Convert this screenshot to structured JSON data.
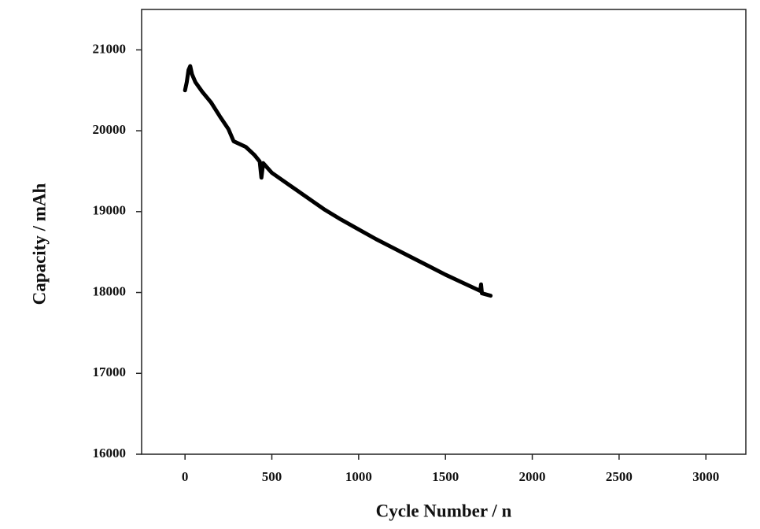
{
  "chart_data": {
    "type": "line",
    "x_label": "Cycle Number / n",
    "y_label": "Capacity / mAh",
    "x": [
      0,
      10,
      20,
      30,
      40,
      60,
      100,
      150,
      200,
      250,
      280,
      350,
      400,
      430,
      440,
      450,
      500,
      600,
      700,
      800,
      900,
      1000,
      1100,
      1200,
      1300,
      1400,
      1500,
      1600,
      1700,
      1705,
      1710,
      1760
    ],
    "series": [
      {
        "color": "#000000",
        "values": [
          20500,
          20600,
          20750,
          20800,
          20700,
          20600,
          20480,
          20350,
          20180,
          20020,
          19870,
          19800,
          19700,
          19620,
          19420,
          19600,
          19480,
          19330,
          19180,
          19030,
          18900,
          18780,
          18660,
          18550,
          18440,
          18330,
          18220,
          18120,
          18020,
          18100,
          17990,
          17960
        ]
      }
    ],
    "xlim": [
      -250,
      3230
    ],
    "ylim": [
      16000,
      21500
    ],
    "xticks": [
      0,
      500,
      1000,
      1500,
      2000,
      2500,
      3000
    ],
    "yticks": [
      16000,
      17000,
      18000,
      19000,
      20000,
      21000
    ]
  }
}
